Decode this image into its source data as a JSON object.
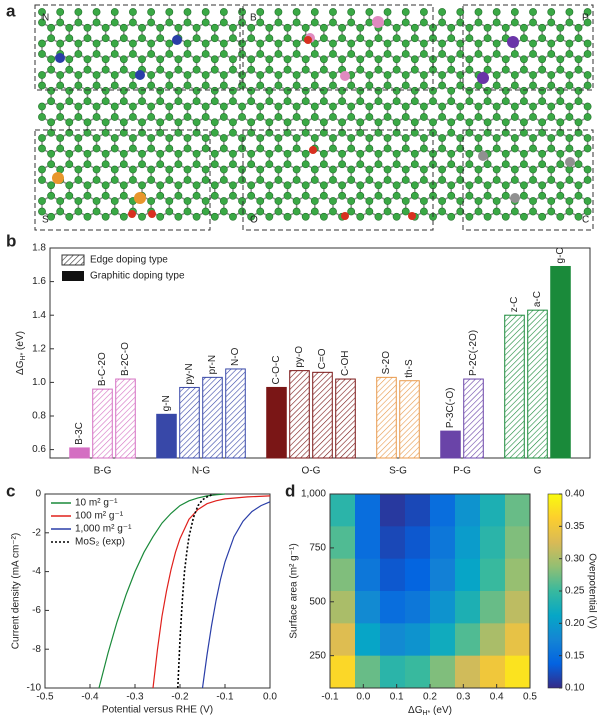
{
  "panel_labels": [
    "a",
    "b",
    "c",
    "d"
  ],
  "panel_a": {
    "regions": [
      "N",
      "B",
      "P",
      "S",
      "O",
      "C"
    ]
  },
  "chart_data": [
    {
      "type": "bar",
      "ylabel": [
        "ΔG",
        "H*",
        " (eV)"
      ],
      "ylim": [
        0.55,
        1.8
      ],
      "yticks": [
        0.6,
        0.8,
        {
          "value": 1.0,
          "label": "1.0"
        },
        1.2,
        1.4,
        1.6,
        1.8
      ],
      "legend": {
        "hatched": "Edge doping type",
        "solid": "Graphitic doping type"
      },
      "groups": [
        {
          "name": "B-G",
          "color": "#d46fc2",
          "bars": [
            {
              "label": "B-3C",
              "value": 0.61,
              "style": "solid"
            },
            {
              "label": "B-C-2O",
              "value": 0.96,
              "style": "hatched"
            },
            {
              "label": "B-2C-O",
              "value": 1.02,
              "style": "hatched"
            }
          ]
        },
        {
          "name": "N-G",
          "color": "#3848a8",
          "bars": [
            {
              "label": "g-N",
              "value": 0.81,
              "style": "solid"
            },
            {
              "label": "py-N",
              "value": 0.97,
              "style": "hatched"
            },
            {
              "label": "pr-N",
              "value": 1.03,
              "style": "hatched"
            },
            {
              "label": "N-O",
              "value": 1.08,
              "style": "hatched"
            }
          ]
        },
        {
          "name": "O-G",
          "color": "#7a1616",
          "bars": [
            {
              "label": "C-O-C",
              "value": 0.97,
              "style": "solid"
            },
            {
              "label": "py-O",
              "value": 1.07,
              "style": "hatched"
            },
            {
              "label": "C=O",
              "value": 1.06,
              "style": "hatched"
            },
            {
              "label": "C-OH",
              "value": 1.02,
              "style": "hatched"
            }
          ]
        },
        {
          "name": "S-G",
          "color": "#e89a4c",
          "bars": [
            {
              "label": "S-2O",
              "value": 1.03,
              "style": "hatched"
            },
            {
              "label": "th-S",
              "value": 1.01,
              "style": "hatched"
            }
          ]
        },
        {
          "name": "P-G",
          "color": "#6a44a8",
          "bars": [
            {
              "label": "P-3C(-O)",
              "value": 0.71,
              "style": "solid"
            },
            {
              "label": "P-2C(-2O)",
              "value": 1.02,
              "style": "hatched"
            }
          ]
        },
        {
          "name": "G",
          "color": "#1a8a3a",
          "bars": [
            {
              "label": "z-C",
              "value": 1.4,
              "style": "hatched"
            },
            {
              "label": "a-C",
              "value": 1.43,
              "style": "hatched"
            },
            {
              "label": "g-C",
              "value": 1.69,
              "style": "solid"
            }
          ]
        }
      ]
    },
    {
      "type": "line",
      "xlabel": "Potential versus RHE (V)",
      "ylabel": "Current density (mA cm⁻²)",
      "xlim": [
        -0.5,
        0
      ],
      "ylim": [
        -10,
        0
      ],
      "xticks": [
        -0.5,
        -0.4,
        -0.3,
        -0.2,
        -0.1,
        {
          "value": 0,
          "label": "0.0"
        }
      ],
      "yticks": [
        -10,
        -8,
        -6,
        -4,
        -2,
        0
      ],
      "series": [
        {
          "name": "10 m² g⁻¹",
          "color": "#1a8a3a",
          "dash": false,
          "x": [
            -0.38,
            -0.36,
            -0.34,
            -0.32,
            -0.3,
            -0.28,
            -0.26,
            -0.24,
            -0.22,
            -0.2,
            -0.18,
            -0.16,
            -0.14,
            -0.12,
            -0.1
          ],
          "values": [
            -10,
            -8.2,
            -6.6,
            -5.2,
            -4.0,
            -3.0,
            -2.2,
            -1.5,
            -1.0,
            -0.6,
            -0.35,
            -0.2,
            -0.1,
            -0.04,
            0
          ]
        },
        {
          "name": "100 m² g⁻¹",
          "color": "#e0201c",
          "dash": false,
          "x": [
            -0.26,
            -0.25,
            -0.24,
            -0.23,
            -0.22,
            -0.21,
            -0.2,
            -0.18,
            -0.16,
            -0.14,
            -0.12,
            -0.1,
            -0.05,
            0
          ],
          "values": [
            -10,
            -8,
            -6.3,
            -5,
            -3.9,
            -3,
            -2.3,
            -1.3,
            -0.8,
            -0.5,
            -0.35,
            -0.25,
            -0.15,
            -0.1
          ]
        },
        {
          "name": "1,000 m² g⁻¹",
          "color": "#2a3ea8",
          "dash": false,
          "x": [
            -0.15,
            -0.14,
            -0.13,
            -0.12,
            -0.11,
            -0.1,
            -0.08,
            -0.06,
            -0.04,
            -0.02,
            0
          ],
          "values": [
            -10,
            -8.3,
            -6.8,
            -5.5,
            -4.4,
            -3.5,
            -2.2,
            -1.4,
            -0.9,
            -0.6,
            -0.4
          ]
        },
        {
          "name": "MoS₂ (exp)",
          "color": "#000000",
          "dash": true,
          "x": [
            -0.205,
            -0.2,
            -0.195,
            -0.19,
            -0.185,
            -0.18,
            -0.17,
            -0.16,
            -0.15,
            -0.14,
            -0.13
          ],
          "values": [
            -10,
            -7.5,
            -5.5,
            -4,
            -3,
            -2.2,
            -1.2,
            -0.6,
            -0.3,
            -0.15,
            -0.05
          ]
        }
      ]
    },
    {
      "type": "heatmap",
      "xlabel": [
        "ΔG",
        "H*",
        " (eV)"
      ],
      "ylabel": "Surface area (m² g⁻¹)",
      "colorbar_label": "Overpotential (V)",
      "xlim": [
        -0.1,
        0.5
      ],
      "ylim": [
        100,
        1000
      ],
      "xticks": [
        -0.1,
        {
          "value": 0,
          "label": "0.0"
        },
        0.1,
        0.2,
        0.3,
        0.4,
        0.5
      ],
      "yticks": [
        250,
        500,
        750,
        {
          "value": 1000,
          "label": "1,000"
        }
      ],
      "clim": [
        0.1,
        0.4
      ],
      "cticks": [
        {
          "value": 0.1,
          "label": "0.10"
        },
        0.15,
        {
          "value": 0.2,
          "label": "0.20"
        },
        0.25,
        {
          "value": 0.3,
          "label": "0.30"
        },
        0.35,
        {
          "value": 0.4,
          "label": "0.40"
        }
      ],
      "x": [
        -0.0625,
        0.0125,
        0.0875,
        0.1625,
        0.2375,
        0.3125,
        0.3875,
        0.4625
      ],
      "y": [
        925,
        775,
        625,
        475,
        325,
        175
      ],
      "z": [
        [
          0.24,
          0.15,
          0.11,
          0.12,
          0.15,
          0.19,
          0.23,
          0.27
        ],
        [
          0.26,
          0.15,
          0.12,
          0.13,
          0.16,
          0.2,
          0.24,
          0.28
        ],
        [
          0.28,
          0.16,
          0.13,
          0.14,
          0.17,
          0.21,
          0.25,
          0.29
        ],
        [
          0.3,
          0.18,
          0.15,
          0.16,
          0.19,
          0.23,
          0.27,
          0.31
        ],
        [
          0.33,
          0.21,
          0.18,
          0.19,
          0.22,
          0.26,
          0.3,
          0.34
        ],
        [
          0.37,
          0.27,
          0.24,
          0.25,
          0.28,
          0.32,
          0.35,
          0.38
        ]
      ]
    }
  ]
}
